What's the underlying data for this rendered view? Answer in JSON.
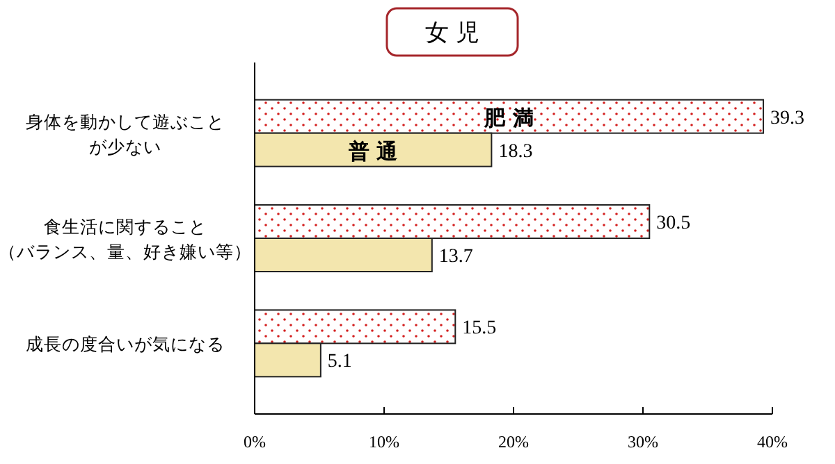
{
  "chart_data": {
    "type": "bar",
    "orientation": "horizontal",
    "title": "女 児",
    "categories": [
      "身体を動かして遊ぶことが少ない",
      "食生活に関すること（バランス、量、好き嫌い等）",
      "成長の度合いが気になる"
    ],
    "series": [
      {
        "name": "肥 満",
        "color": "#d42020",
        "values": [
          39.3,
          30.5,
          15.5
        ]
      },
      {
        "name": "普 通",
        "color": "#f3e6ae",
        "values": [
          18.3,
          13.7,
          5.1
        ]
      }
    ],
    "xlim": [
      0,
      40
    ],
    "xticks": [
      {
        "value": 0,
        "label": "0%"
      },
      {
        "value": 10,
        "label": "10%"
      },
      {
        "value": 20,
        "label": "20%"
      },
      {
        "value": 30,
        "label": "30%"
      },
      {
        "value": 40,
        "label": "40%"
      }
    ],
    "data_labels": true,
    "legend": false,
    "grid": false
  }
}
